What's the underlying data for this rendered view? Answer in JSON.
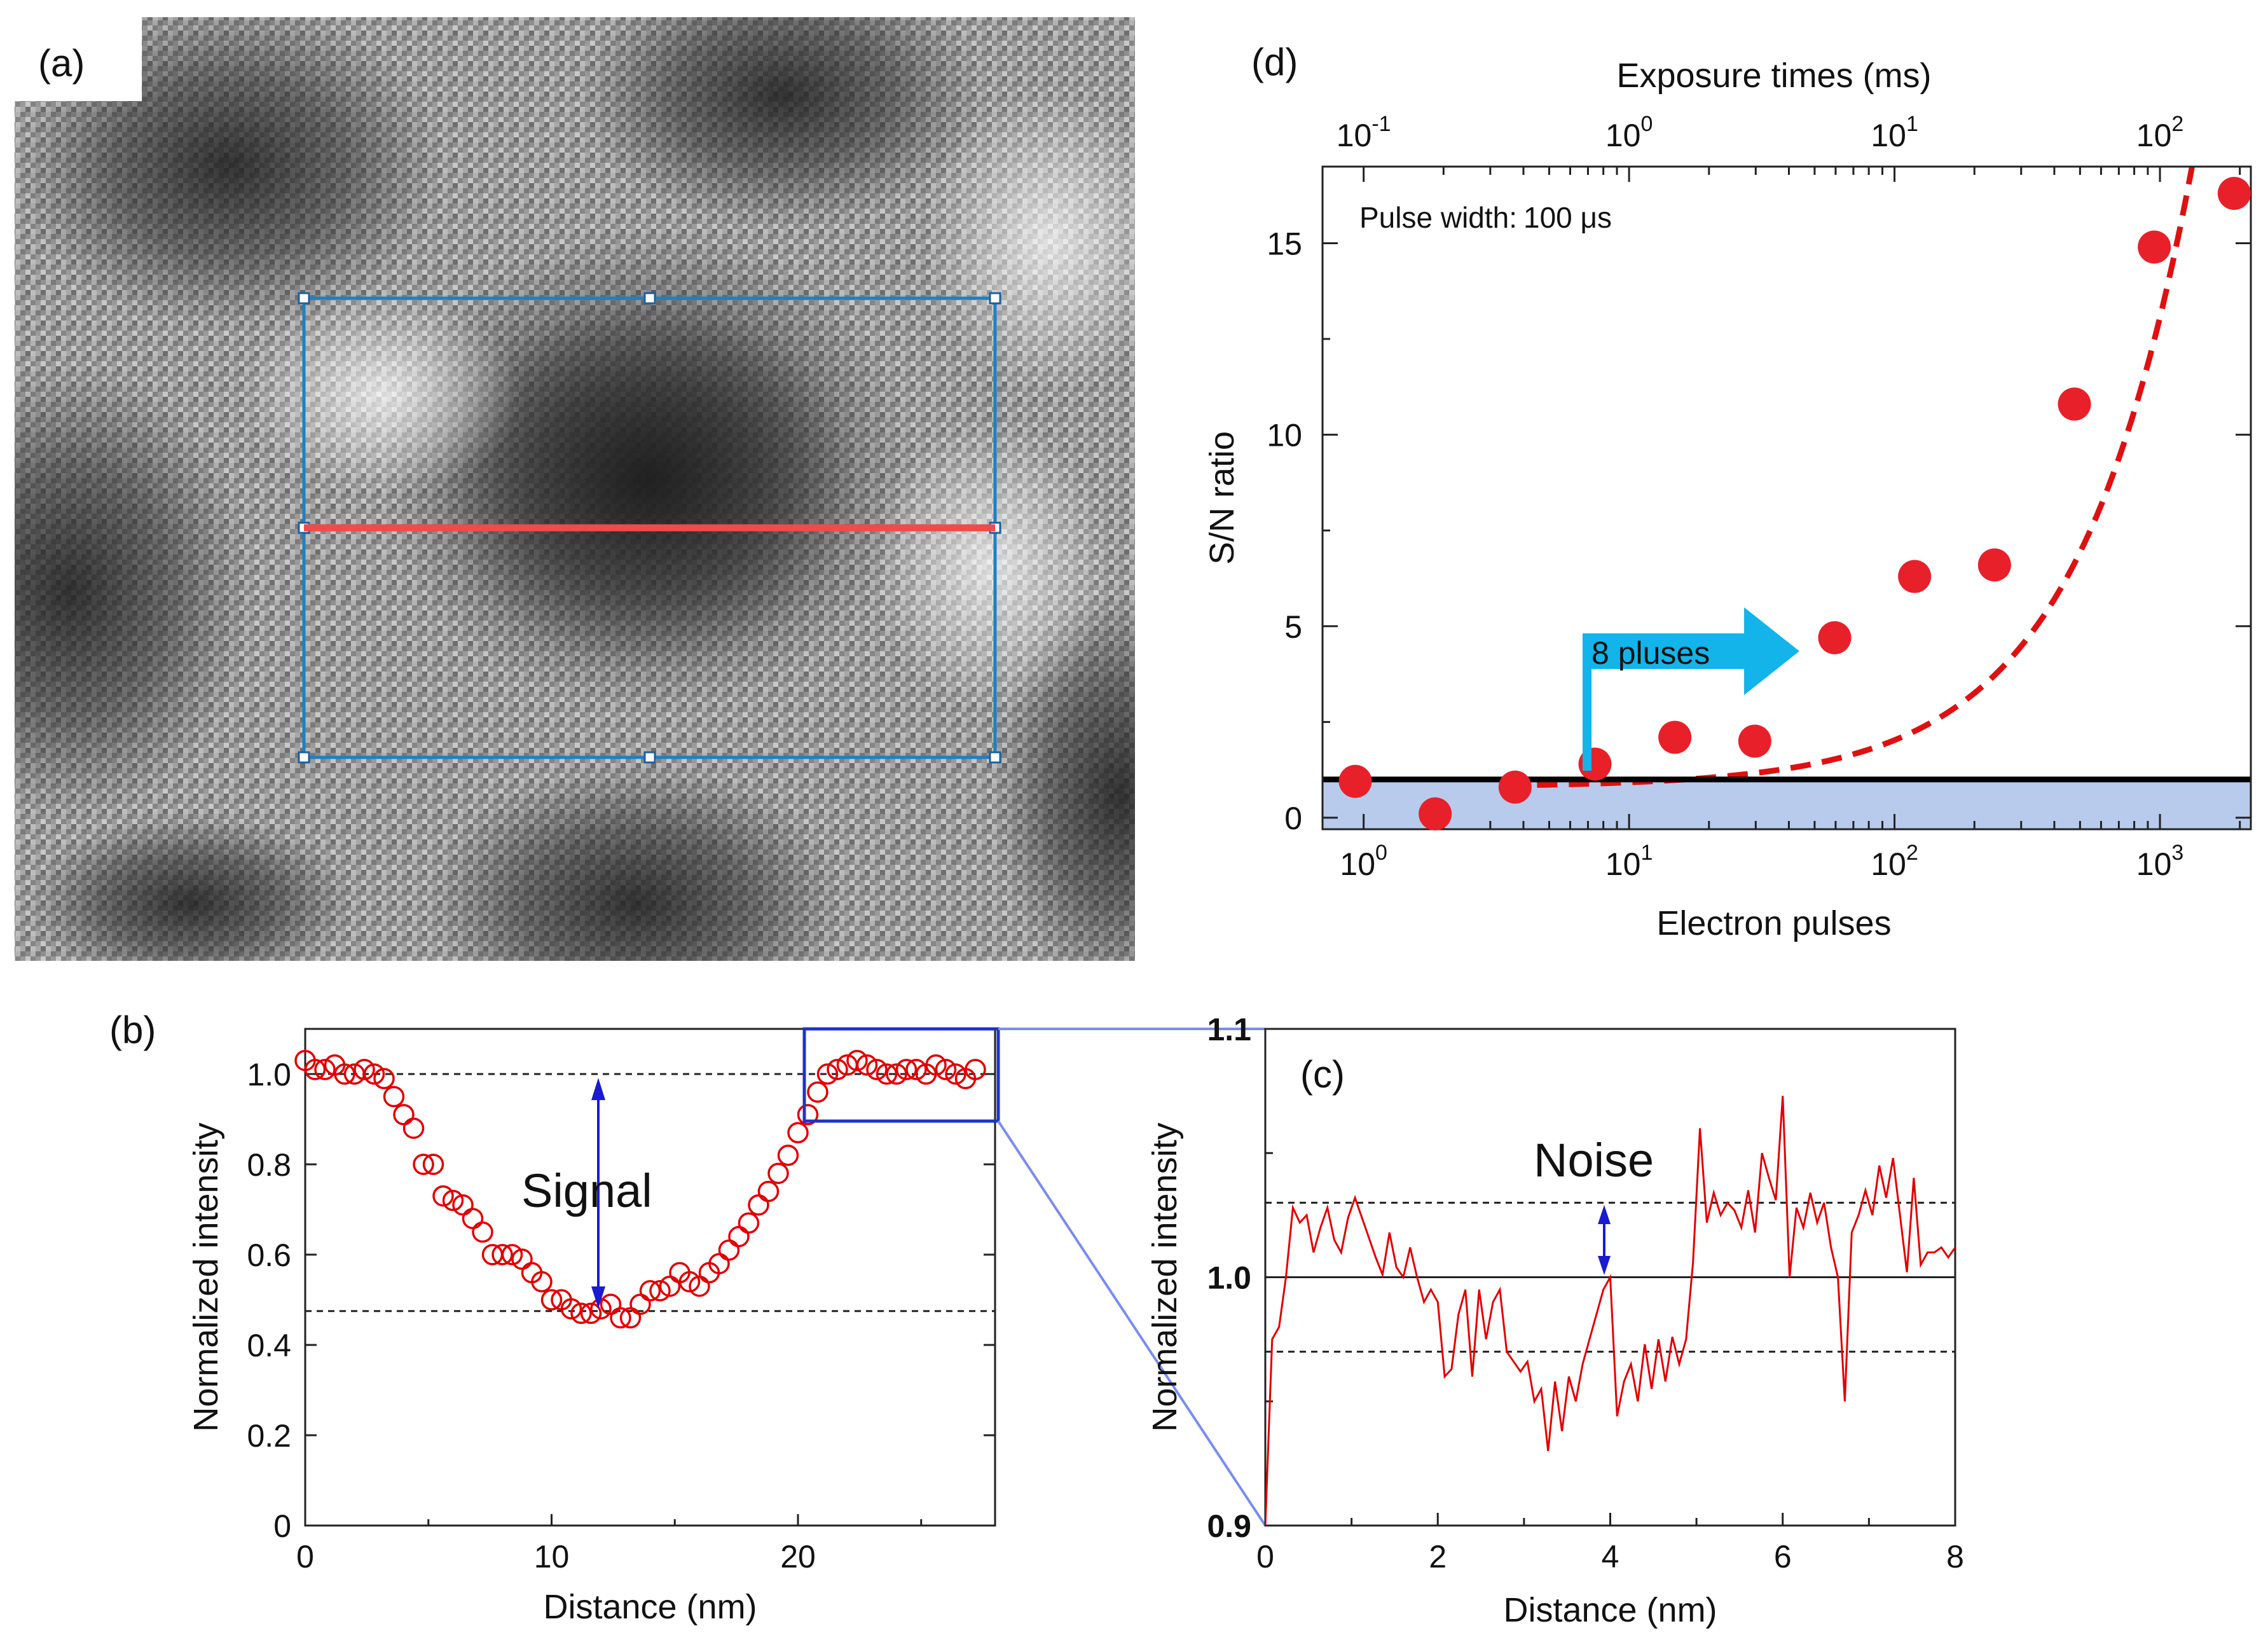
{
  "panels": {
    "a": {
      "label": "(a)"
    },
    "b": {
      "label": "(b)"
    },
    "c": {
      "label": "(c)"
    },
    "d": {
      "label": "(d)"
    }
  },
  "colors": {
    "data_red": "#e00000",
    "dot_red": "#e8202a",
    "fit_red": "#e01010",
    "blue_text": "#1a1ad0",
    "arrow_cyan": "#12b4ea",
    "band_blue": "#b8cbec",
    "roi_blue": "#1f7fc4",
    "roi_yellow": "#e4e23a",
    "profile_red": "#ef4b4b",
    "zoom_blue": "#1c34c8",
    "zoom_line": "#7a8cf0"
  },
  "chart_data": [
    {
      "id": "b",
      "type": "scatter",
      "marker": "open-circle",
      "xlabel": "Distance (nm)",
      "ylabel": "Normalized intensity",
      "xlim": [
        0,
        28
      ],
      "ylim": [
        0,
        1.1
      ],
      "xticks": [
        0,
        10,
        20
      ],
      "yticks": [
        "0",
        "0.2",
        "0.4",
        "0.6",
        "0.8",
        "1.0"
      ],
      "ytick_values": [
        0,
        0.2,
        0.4,
        0.6,
        0.8,
        1.0
      ],
      "reference_lines": [
        1.0,
        0.475
      ],
      "annotation": "Signal",
      "x": [
        0,
        0.4,
        0.8,
        1.2,
        1.6,
        2.0,
        2.4,
        2.8,
        3.2,
        3.6,
        4.0,
        4.4,
        4.8,
        5.2,
        5.6,
        6.0,
        6.4,
        6.8,
        7.2,
        7.6,
        8.0,
        8.4,
        8.8,
        9.2,
        9.6,
        10.0,
        10.4,
        10.8,
        11.2,
        11.6,
        12.0,
        12.4,
        12.8,
        13.2,
        13.6,
        14.0,
        14.4,
        14.8,
        15.2,
        15.6,
        16.0,
        16.4,
        16.8,
        17.2,
        17.6,
        18.0,
        18.4,
        18.8,
        19.2,
        19.6,
        20.0,
        20.4,
        20.8,
        21.2,
        21.6,
        22.0,
        22.4,
        22.8,
        23.2,
        23.6,
        24.0,
        24.4,
        24.8,
        25.2,
        25.6,
        26.0,
        26.4,
        26.8,
        27.2
      ],
      "values": [
        1.03,
        1.01,
        1.01,
        1.02,
        1.0,
        1.0,
        1.01,
        1.0,
        0.99,
        0.95,
        0.91,
        0.88,
        0.8,
        0.8,
        0.73,
        0.72,
        0.71,
        0.68,
        0.65,
        0.6,
        0.6,
        0.6,
        0.59,
        0.56,
        0.54,
        0.5,
        0.5,
        0.48,
        0.47,
        0.47,
        0.48,
        0.49,
        0.46,
        0.46,
        0.49,
        0.52,
        0.52,
        0.53,
        0.56,
        0.54,
        0.53,
        0.56,
        0.58,
        0.61,
        0.64,
        0.67,
        0.71,
        0.74,
        0.78,
        0.82,
        0.87,
        0.91,
        0.96,
        1.0,
        1.01,
        1.02,
        1.03,
        1.02,
        1.01,
        1.0,
        1.0,
        1.01,
        1.01,
        1.0,
        1.02,
        1.01,
        1.0,
        0.99,
        1.01
      ]
    },
    {
      "id": "c",
      "type": "line",
      "xlabel": "Distance (nm)",
      "ylabel": "Normalized intensity",
      "xlim": [
        0,
        8
      ],
      "ylim": [
        0.9,
        1.1
      ],
      "xticks": [
        0,
        2,
        4,
        6,
        8
      ],
      "yticks": [
        "0.9",
        "1.0",
        "1.1"
      ],
      "ytick_values": [
        0.9,
        1.0,
        1.1
      ],
      "reference_lines": {
        "solid": 1.0,
        "dashed": [
          1.03,
          0.97
        ]
      },
      "annotation": "Noise",
      "x": [
        0,
        0.08,
        0.16,
        0.24,
        0.32,
        0.4,
        0.48,
        0.56,
        0.64,
        0.72,
        0.8,
        0.88,
        0.96,
        1.04,
        1.12,
        1.2,
        1.28,
        1.36,
        1.44,
        1.52,
        1.6,
        1.68,
        1.76,
        1.84,
        1.92,
        2.0,
        2.08,
        2.16,
        2.24,
        2.32,
        2.4,
        2.48,
        2.56,
        2.64,
        2.72,
        2.8,
        2.88,
        2.96,
        3.04,
        3.12,
        3.2,
        3.28,
        3.36,
        3.44,
        3.52,
        3.6,
        3.68,
        3.76,
        3.84,
        3.92,
        4.0,
        4.08,
        4.16,
        4.24,
        4.32,
        4.4,
        4.48,
        4.56,
        4.64,
        4.72,
        4.8,
        4.88,
        4.96,
        5.04,
        5.12,
        5.2,
        5.28,
        5.36,
        5.44,
        5.52,
        5.6,
        5.68,
        5.76,
        5.84,
        5.92,
        6.0,
        6.08,
        6.16,
        6.24,
        6.32,
        6.4,
        6.48,
        6.56,
        6.64,
        6.72,
        6.8,
        6.88,
        6.96,
        7.04,
        7.12,
        7.2,
        7.28,
        7.36,
        7.44,
        7.52,
        7.6,
        7.68,
        7.76,
        7.84,
        7.92,
        8.0
      ],
      "values": [
        0.9,
        0.975,
        0.98,
        1.0,
        1.028,
        1.022,
        1.025,
        1.01,
        1.02,
        1.028,
        1.015,
        1.01,
        1.024,
        1.032,
        1.024,
        1.016,
        1.008,
        1.001,
        1.018,
        1.004,
        1.0,
        1.012,
        1.0,
        0.99,
        0.995,
        0.99,
        0.96,
        0.963,
        0.985,
        0.995,
        0.96,
        0.995,
        0.975,
        0.99,
        0.995,
        0.97,
        0.966,
        0.962,
        0.966,
        0.95,
        0.955,
        0.93,
        0.958,
        0.938,
        0.96,
        0.95,
        0.965,
        0.975,
        0.985,
        0.995,
        1.0,
        0.944,
        0.958,
        0.965,
        0.95,
        0.973,
        0.955,
        0.975,
        0.958,
        0.976,
        0.965,
        0.975,
        1.006,
        1.06,
        1.022,
        1.034,
        1.025,
        1.03,
        1.027,
        1.02,
        1.035,
        1.018,
        1.05,
        1.04,
        1.031,
        1.073,
        1.0,
        1.028,
        1.02,
        1.034,
        1.022,
        1.03,
        1.012,
        1.0,
        0.95,
        1.018,
        1.025,
        1.035,
        1.025,
        1.045,
        1.032,
        1.048,
        1.025,
        1.002,
        1.04,
        1.005,
        1.01,
        1.01,
        1.012,
        1.008,
        1.012
      ]
    },
    {
      "id": "d",
      "type": "scatter",
      "xscale": "log",
      "xlabel": "Electron pulses",
      "x2label": "Exposure times (ms)",
      "ylabel": "S/N ratio",
      "xlim": [
        0.7,
        2200
      ],
      "ylim": [
        -0.3,
        17
      ],
      "yticks": [
        "0",
        "5",
        "10",
        "15"
      ],
      "ytick_values": [
        0,
        5,
        10,
        15
      ],
      "xtick_bases": [
        "10",
        "10",
        "10",
        "10"
      ],
      "xtick_exps": [
        "0",
        "1",
        "2",
        "3"
      ],
      "xtick_values": [
        1,
        10,
        100,
        1000
      ],
      "x2tick_bases": [
        "10",
        "10",
        "10",
        "10"
      ],
      "x2tick_exps": [
        "-1",
        "0",
        "1",
        "2"
      ],
      "x2tick_values": [
        0.1,
        1,
        10,
        100
      ],
      "exposure_per_pulse_ms": 0.1,
      "threshold": 1,
      "annotation_label": "Pulse width:",
      "annotation_value": "100 μs",
      "arrow_label": "8 pluses",
      "pulses": [
        1,
        2,
        4,
        8,
        16,
        32,
        64,
        128,
        256,
        512,
        1024,
        2048
      ],
      "values": [
        0.95,
        0.1,
        0.8,
        1.4,
        2.1,
        2.0,
        4.7,
        6.3,
        6.6,
        10.8,
        14.9,
        16.3
      ],
      "fit": {
        "style": "dashed",
        "model": "linear",
        "slope": 0.01226,
        "intercept": 0.8
      }
    }
  ]
}
